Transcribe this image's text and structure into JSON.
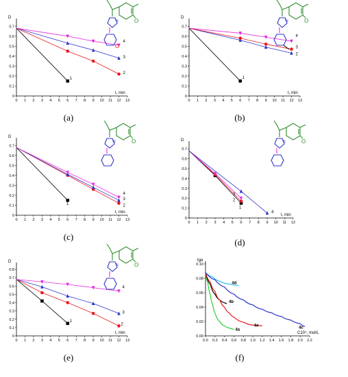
{
  "colors": {
    "black": "#000000",
    "red": "#e8191f",
    "blue": "#2b35c9",
    "magenta": "#e827e0",
    "green": "#2e8b2e",
    "cyan": "#2ec0ea",
    "lime": "#2ccc2c"
  },
  "chart_data": [
    {
      "type": "line",
      "panel_label": "(a)",
      "xlabel": "t, min",
      "ylabel": "D",
      "xlim": [
        0,
        13
      ],
      "ylim": [
        0,
        0.75
      ],
      "xticks": [
        0,
        1,
        2,
        3,
        4,
        5,
        6,
        7,
        8,
        9,
        10,
        11,
        12,
        13
      ],
      "yticks": [
        0,
        0.1,
        0.2,
        0.3,
        0.4,
        0.5,
        0.6,
        0.7
      ],
      "amine": "morpholine",
      "series": [
        {
          "name": "1",
          "color": "#000000",
          "marker": "square",
          "x": [
            0,
            6
          ],
          "y": [
            0.68,
            0.15
          ]
        },
        {
          "name": "2",
          "color": "#e8191f",
          "marker": "circle",
          "x": [
            0,
            6,
            9,
            12
          ],
          "y": [
            0.68,
            0.45,
            0.35,
            0.22
          ]
        },
        {
          "name": "3",
          "color": "#2b35c9",
          "marker": "triangle",
          "x": [
            0,
            6,
            9,
            12
          ],
          "y": [
            0.68,
            0.53,
            0.46,
            0.38
          ]
        },
        {
          "name": "4",
          "color": "#e827e0",
          "marker": "tri-down",
          "x": [
            0,
            6,
            9,
            12
          ],
          "y": [
            0.68,
            0.6,
            0.55,
            0.51
          ]
        }
      ]
    },
    {
      "type": "line",
      "panel_label": "(b)",
      "xlabel": "t, min",
      "ylabel": "D",
      "xlim": [
        0,
        13
      ],
      "ylim": [
        0,
        0.75
      ],
      "xticks": [
        0,
        1,
        2,
        3,
        4,
        5,
        6,
        7,
        8,
        9,
        10,
        11,
        12,
        13
      ],
      "yticks": [
        0,
        0.1,
        0.2,
        0.3,
        0.4,
        0.5,
        0.6,
        0.7
      ],
      "amine": "N-methylpiperazine",
      "series": [
        {
          "name": "1",
          "color": "#000000",
          "marker": "square",
          "x": [
            0,
            6
          ],
          "y": [
            0.68,
            0.15
          ]
        },
        {
          "name": "2",
          "color": "#2b35c9",
          "marker": "triangle",
          "x": [
            0,
            6,
            9,
            12
          ],
          "y": [
            0.68,
            0.56,
            0.49,
            0.43
          ]
        },
        {
          "name": "3",
          "color": "#e8191f",
          "marker": "circle",
          "x": [
            0,
            6,
            9,
            12
          ],
          "y": [
            0.68,
            0.58,
            0.52,
            0.47
          ]
        },
        {
          "name": "4",
          "color": "#e827e0",
          "marker": "tri-down",
          "x": [
            0,
            6,
            9,
            12
          ],
          "y": [
            0.68,
            0.63,
            0.59,
            0.55
          ]
        }
      ]
    },
    {
      "type": "line",
      "panel_label": "(c)",
      "xlabel": "t, min",
      "ylabel": "D",
      "xlim": [
        0,
        13
      ],
      "ylim": [
        0,
        0.75
      ],
      "xticks": [
        0,
        1,
        2,
        3,
        4,
        5,
        6,
        7,
        8,
        9,
        10,
        11,
        12,
        13
      ],
      "yticks": [
        0,
        0.1,
        0.2,
        0.3,
        0.4,
        0.5,
        0.6,
        0.7
      ],
      "amine": "pyrrolidine",
      "series": [
        {
          "name": "1",
          "color": "#000000",
          "marker": "square",
          "x": [
            0,
            6
          ],
          "y": [
            0.68,
            0.15
          ]
        },
        {
          "name": "2",
          "color": "#e8191f",
          "marker": "circle",
          "x": [
            0,
            6,
            9,
            12
          ],
          "y": [
            0.68,
            0.4,
            0.26,
            0.12
          ]
        },
        {
          "name": "3",
          "color": "#2b35c9",
          "marker": "triangle",
          "x": [
            0,
            6,
            9,
            12
          ],
          "y": [
            0.68,
            0.41,
            0.28,
            0.15
          ]
        },
        {
          "name": "4",
          "color": "#e827e0",
          "marker": "tri-down",
          "x": [
            0,
            6,
            9,
            12
          ],
          "y": [
            0.68,
            0.43,
            0.31,
            0.18
          ]
        }
      ]
    },
    {
      "type": "line",
      "panel_label": "(d)",
      "xlabel": "t, min",
      "ylabel": "D",
      "xlim": [
        0,
        12
      ],
      "ylim": [
        0,
        0.75
      ],
      "xticks": [
        0,
        1,
        2,
        3,
        4,
        5,
        6,
        7,
        8,
        9,
        10,
        11,
        12
      ],
      "yticks": [
        0,
        0.1,
        0.2,
        0.3,
        0.4,
        0.5,
        0.6,
        0.7
      ],
      "amine": "piperidine",
      "series": [
        {
          "name": "1",
          "color": "#000000",
          "marker": "square",
          "x": [
            0,
            3,
            6
          ],
          "y": [
            0.68,
            0.43,
            0.15
          ]
        },
        {
          "name": "2",
          "color": "#e8191f",
          "marker": "circle",
          "x": [
            0,
            3,
            6
          ],
          "y": [
            0.68,
            0.44,
            0.17
          ]
        },
        {
          "name": "3",
          "color": "#e827e0",
          "marker": "tri-down",
          "x": [
            0,
            3,
            6
          ],
          "y": [
            0.68,
            0.45,
            0.2
          ]
        },
        {
          "name": "4",
          "color": "#2b35c9",
          "marker": "triangle",
          "x": [
            0,
            6,
            9
          ],
          "y": [
            0.68,
            0.27,
            0.05
          ]
        }
      ]
    },
    {
      "type": "line",
      "panel_label": "(e)",
      "xlabel": "t, min",
      "ylabel": "D",
      "xlim": [
        0,
        13
      ],
      "ylim": [
        0,
        0.85
      ],
      "xticks": [
        0,
        1,
        2,
        3,
        4,
        5,
        6,
        7,
        8,
        9,
        10,
        11,
        12,
        13
      ],
      "yticks": [
        0,
        0.1,
        0.2,
        0.3,
        0.4,
        0.5,
        0.6,
        0.7,
        0.8
      ],
      "amine": "azepane",
      "series": [
        {
          "name": "1",
          "color": "#000000",
          "marker": "square",
          "x": [
            0,
            3,
            6
          ],
          "y": [
            0.68,
            0.42,
            0.15
          ]
        },
        {
          "name": "2",
          "color": "#e8191f",
          "marker": "circle",
          "x": [
            0,
            3,
            6,
            9,
            12
          ],
          "y": [
            0.68,
            0.52,
            0.4,
            0.27,
            0.12
          ]
        },
        {
          "name": "3",
          "color": "#2b35c9",
          "marker": "triangle",
          "x": [
            0,
            3,
            6,
            9,
            12
          ],
          "y": [
            0.68,
            0.59,
            0.48,
            0.39,
            0.27
          ]
        },
        {
          "name": "4",
          "color": "#e827e0",
          "marker": "tri-down",
          "x": [
            0,
            3,
            6,
            9,
            12
          ],
          "y": [
            0.68,
            0.65,
            0.62,
            0.58,
            0.54
          ]
        }
      ]
    },
    {
      "type": "line",
      "panel_label": "(f)",
      "xlabel": "C10⁴, mol/L",
      "ylabel": "tgα",
      "xlim": [
        0,
        2.2
      ],
      "ylim": [
        0,
        0.1
      ],
      "xticks": [
        0,
        0.2,
        0.4,
        0.6,
        0.8,
        1.0,
        1.2,
        1.4,
        1.6,
        1.8,
        2.0,
        2.2
      ],
      "yticks": [
        0,
        0.02,
        0.04,
        0.06,
        0.08,
        0.1
      ],
      "xticklabels": [
        "0.0",
        "0.2",
        "0.4",
        "0.6",
        "0.8",
        "1.0",
        "1.2",
        "1.4",
        "1.6",
        "1.8",
        "2.0",
        "2.2"
      ],
      "yticklabels": [
        "0.00",
        "0.02",
        "0.04",
        "0.06",
        "0.08",
        "0.10"
      ],
      "series": [
        {
          "name": "4a",
          "color": "#2ccc2c",
          "x": [
            0,
            0.05,
            0.1,
            0.15,
            0.2,
            0.3,
            0.4,
            0.5,
            0.6
          ],
          "y": [
            0.088,
            0.074,
            0.058,
            0.044,
            0.032,
            0.02,
            0.014,
            0.011,
            0.009
          ]
        },
        {
          "name": "4b",
          "color": "#000000",
          "x": [
            0,
            0.1,
            0.2,
            0.3,
            0.4,
            0.45
          ],
          "y": [
            0.088,
            0.072,
            0.058,
            0.05,
            0.046,
            0.045
          ]
        },
        {
          "name": "4d",
          "color": "#2ec0ea",
          "x": [
            0,
            0.15,
            0.3,
            0.5,
            0.7
          ],
          "y": [
            0.088,
            0.082,
            0.076,
            0.072,
            0.07
          ]
        },
        {
          "name": "4e",
          "color": "#e8191f",
          "x": [
            0,
            0.1,
            0.2,
            0.3,
            0.4,
            0.5,
            0.6,
            0.8,
            1.0,
            1.2
          ],
          "y": [
            0.088,
            0.075,
            0.062,
            0.05,
            0.04,
            0.032,
            0.026,
            0.019,
            0.015,
            0.014
          ]
        },
        {
          "name": "4c",
          "color": "#2b35c9",
          "x": [
            0,
            0.2,
            0.4,
            0.6,
            0.8,
            1.0,
            1.2,
            1.4,
            1.6,
            1.8,
            2.0,
            2.1
          ],
          "y": [
            0.088,
            0.078,
            0.068,
            0.058,
            0.05,
            0.043,
            0.037,
            0.032,
            0.027,
            0.022,
            0.017,
            0.013
          ]
        }
      ]
    }
  ]
}
